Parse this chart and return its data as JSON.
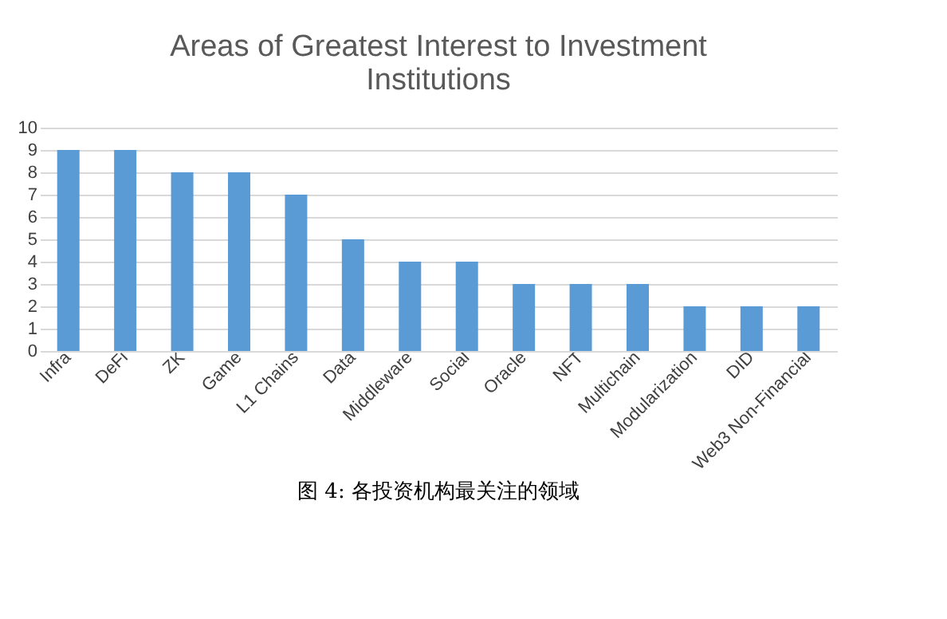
{
  "chart_data": {
    "type": "bar",
    "title": "Areas of Greatest Interest to Investment Institutions",
    "categories": [
      "Infra",
      "DeFi",
      "ZK",
      "Game",
      "L1 Chains",
      "Data",
      "Middleware",
      "Social",
      "Oracle",
      "NFT",
      "Multichain",
      "Modularization",
      "DID",
      "Web3 Non-Financial"
    ],
    "values": [
      9,
      9,
      8,
      8,
      7,
      5,
      4,
      4,
      3,
      3,
      3,
      2,
      2,
      2
    ],
    "color": "#5b9bd5",
    "ylim": [
      0,
      10
    ],
    "yticks": [
      0,
      1,
      2,
      3,
      4,
      5,
      6,
      7,
      8,
      9,
      10
    ],
    "grid": "y",
    "annotations": [
      "图 4: 各投资机构最关注的领域"
    ]
  }
}
